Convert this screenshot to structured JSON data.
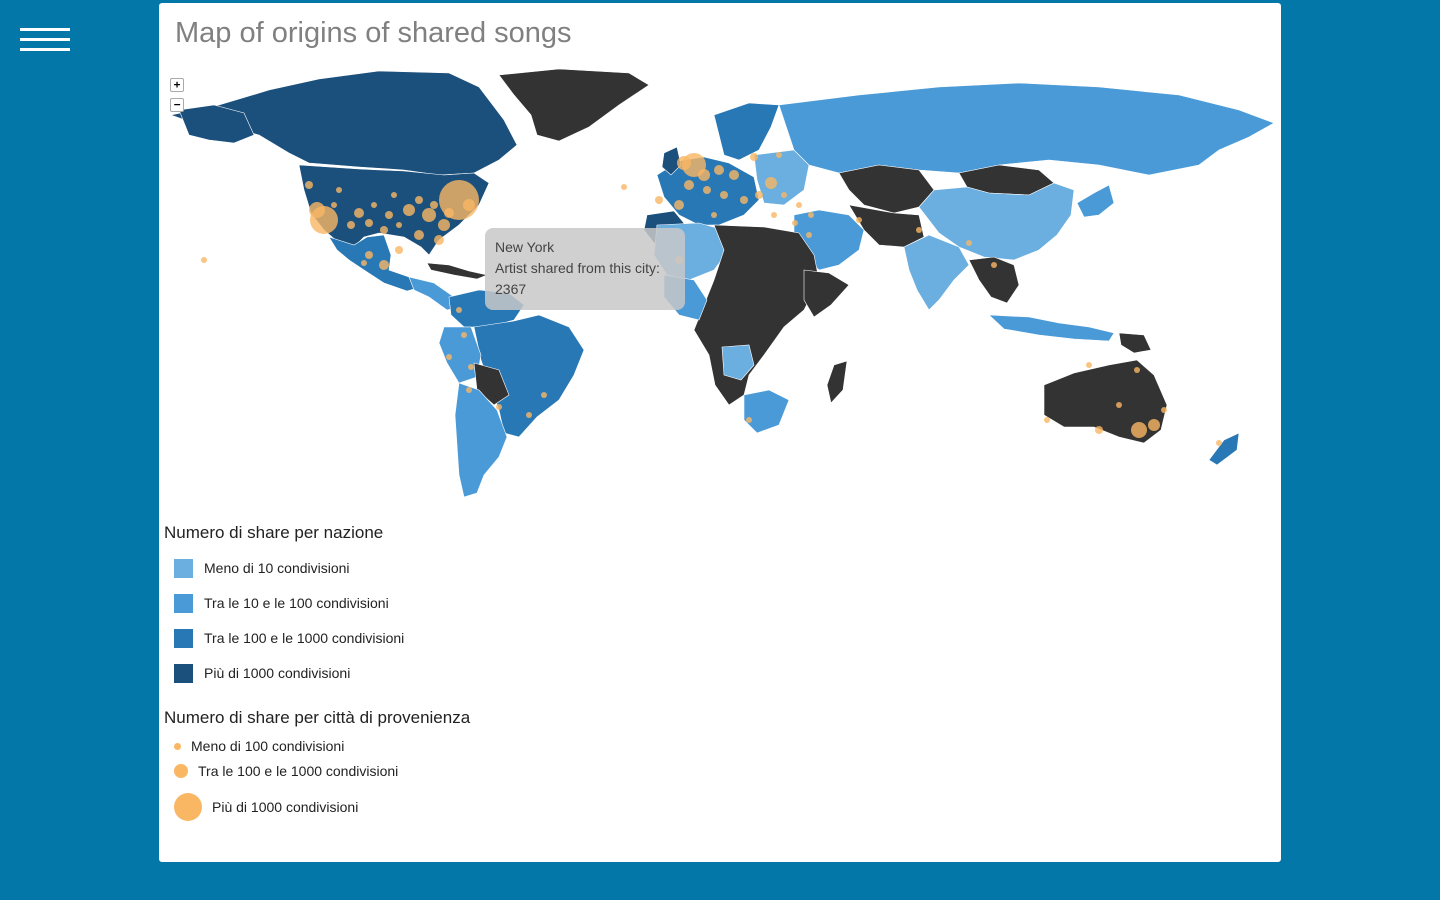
{
  "page": {
    "title": "Map of origins of shared songs"
  },
  "zoom": {
    "in_label": "+",
    "out_label": "−"
  },
  "tooltip": {
    "city": "New York",
    "label": "Artist shared from this city:",
    "value": "2367"
  },
  "colors": {
    "background": "#0277a8",
    "ocean": "#ffffff",
    "tier1": "#6baee0",
    "tier2": "#4a9ad8",
    "tier3": "#2878b5",
    "tier4": "#1b4f7c",
    "no_data": "#333333",
    "city_bubble": "#f9b764"
  },
  "legend_countries": {
    "title": "Numero di share per nazione",
    "items": [
      {
        "label": "Meno di 10 condivisioni",
        "color": "#6baee0"
      },
      {
        "label": "Tra le 10 e le 100 condivisioni",
        "color": "#4a9ad8"
      },
      {
        "label": "Tra le 100 e le 1000 condivisioni",
        "color": "#2878b5"
      },
      {
        "label": "Più di 1000 condivisioni",
        "color": "#1b4f7c"
      }
    ]
  },
  "legend_cities": {
    "title": "Numero di share per città di provenienza",
    "items": [
      {
        "label": "Meno di 100 condivisioni"
      },
      {
        "label": "Tra le 100 e le 1000 condivisioni"
      },
      {
        "label": "Più di 1000 condivisioni"
      }
    ]
  }
}
